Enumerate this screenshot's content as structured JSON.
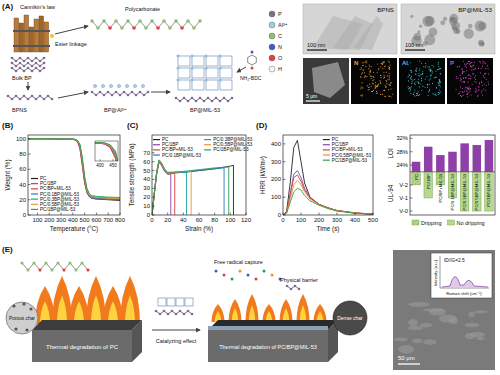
{
  "panel_a": {
    "letter": "(A)",
    "texts": {
      "cannikin": "Cannikin's law",
      "polycarbonate": "Polycarbonate",
      "ester": "Ester linkage",
      "bulk_bp": "Bulk BP",
      "bpns": "BPNS",
      "bp_al": "BP@Al³⁺",
      "bp_mil": "BP@MIL-53",
      "bdc": "NH₂-BDC"
    },
    "atoms": [
      {
        "label": "P",
        "color": "#7d6b91"
      },
      {
        "label": "Al³⁺",
        "color": "#9fcde6"
      },
      {
        "label": "C",
        "color": "#8fbf6a"
      },
      {
        "label": "N",
        "color": "#3a5fcd"
      },
      {
        "label": "O",
        "color": "#e04040"
      },
      {
        "label": "H",
        "color": "#f4f4f4"
      }
    ],
    "tem": [
      {
        "title": "BPNS",
        "scale": "100 nm"
      },
      {
        "title": "BP@MIL-53",
        "scale": "100 nm"
      }
    ],
    "mapping": {
      "scale": "5 μm",
      "elements": [
        {
          "label": "N",
          "color": "#e8a03a"
        },
        {
          "label": "Al",
          "color": "#3ec9d6"
        },
        {
          "label": "P",
          "color": "#d84fc8"
        }
      ]
    }
  },
  "chart_data": [
    {
      "panel": "(B)",
      "type": "line",
      "xlabel": "Temperature (°C)",
      "ylabel": "Weight (%)",
      "x": [
        20,
        100,
        200,
        300,
        400,
        420,
        440,
        460,
        480,
        500,
        520,
        540,
        560,
        600,
        700,
        800
      ],
      "xlim": [
        20,
        800
      ],
      "xticks": [
        100,
        200,
        300,
        400,
        500,
        600,
        700,
        800
      ],
      "ylim": [
        0,
        105
      ],
      "yticks": [
        0,
        20,
        40,
        60,
        80,
        100
      ],
      "legend": "lower left",
      "series": [
        {
          "name": "PC",
          "color": "#222222",
          "values": [
            100,
            100,
            100,
            99.8,
            99.5,
            99,
            97,
            90,
            70,
            45,
            30,
            24,
            22,
            21,
            20,
            19
          ]
        },
        {
          "name": "PC/1BP",
          "color": "#8e44ad",
          "values": [
            100,
            100,
            100,
            99.7,
            99.3,
            98.5,
            96,
            88,
            66,
            42,
            29,
            24,
            22,
            21,
            20.5,
            20
          ]
        },
        {
          "name": "PC/BP+MIL-53",
          "color": "#d94040",
          "values": [
            100,
            100,
            100,
            99.7,
            99.2,
            98.4,
            95.5,
            87,
            65,
            42,
            30,
            25,
            23,
            22,
            21,
            20.5
          ]
        },
        {
          "name": "PC/0.1BP@MIL-53",
          "color": "#2a7ab9",
          "values": [
            100,
            100,
            100,
            99.8,
            99.5,
            99,
            97,
            91,
            72,
            47,
            31,
            25,
            23,
            22,
            21,
            20.5
          ]
        },
        {
          "name": "PC/0.3BP@MIL-53",
          "color": "#17a2a2",
          "values": [
            100,
            100,
            100,
            99.8,
            99.6,
            99.2,
            97.5,
            92,
            74,
            49,
            33,
            27,
            24.5,
            23.5,
            22.5,
            22
          ]
        },
        {
          "name": "PC/0.5BP@MIL-53",
          "color": "#e8962e",
          "values": [
            100,
            100,
            100,
            99.8,
            99.5,
            99.1,
            97.2,
            91,
            73,
            48,
            32,
            26,
            24,
            23,
            22,
            21.5
          ]
        },
        {
          "name": "PC/1BP@MIL-53",
          "color": "#2e9e4f",
          "values": [
            100,
            100,
            100,
            99.8,
            99.6,
            99.3,
            98,
            93,
            76,
            51,
            35,
            28,
            25.5,
            24.5,
            23.5,
            23
          ]
        }
      ],
      "inset": {
        "xlim": [
          380,
          470
        ],
        "ylim": [
          85,
          101
        ],
        "xticks": [
          400,
          450
        ]
      }
    },
    {
      "panel": "(C)",
      "type": "line",
      "xlabel": "Strain (%)",
      "ylabel": "Tensile strength (MPa)",
      "xlim": [
        0,
        120
      ],
      "xticks": [
        0,
        20,
        40,
        60,
        80,
        100,
        120
      ],
      "ylim": [
        0,
        90
      ],
      "yticks": [
        0,
        10,
        20,
        30,
        40,
        50,
        60,
        70
      ],
      "legend": "upper right",
      "series": [
        {
          "name": "PC",
          "color": "#222222",
          "x": [
            0,
            3,
            6,
            9,
            12,
            16,
            20,
            40,
            60,
            80,
            100,
            104,
            104
          ],
          "values": [
            0,
            25,
            48,
            61,
            58,
            51,
            47,
            48,
            50,
            52,
            55,
            56,
            0
          ]
        },
        {
          "name": "PC/1BP",
          "color": "#8e44ad",
          "x": [
            0,
            3,
            6,
            9,
            12,
            16,
            20,
            24,
            24
          ],
          "values": [
            0,
            24,
            46,
            59,
            56,
            49,
            46,
            46,
            0
          ]
        },
        {
          "name": "PC/BP+MIL-53",
          "color": "#d94040",
          "x": [
            0,
            3,
            6,
            9,
            12,
            16,
            20,
            29,
            29
          ],
          "values": [
            0,
            24,
            47,
            60,
            57,
            50,
            46,
            47,
            0
          ]
        },
        {
          "name": "PC/0.1BP@MIL-53",
          "color": "#2a7ab9",
          "x": [
            0,
            3,
            6,
            9,
            12,
            16,
            20,
            40,
            60,
            80,
            92,
            92
          ],
          "values": [
            0,
            25,
            48,
            61,
            58,
            51,
            47,
            48,
            50,
            52,
            53,
            0
          ]
        },
        {
          "name": "PC/0.3BP@MIL-53",
          "color": "#17a2a2",
          "x": [
            0,
            3,
            6,
            9,
            12,
            16,
            20,
            30,
            44,
            44
          ],
          "values": [
            0,
            25,
            48,
            61,
            58,
            51,
            47,
            48,
            48,
            0
          ]
        },
        {
          "name": "PC/0.5BP@MIL-53",
          "color": "#e8962e",
          "x": [
            0,
            3,
            6,
            9,
            12,
            16,
            20,
            30,
            40,
            50,
            50
          ],
          "values": [
            0,
            25,
            48,
            61,
            58,
            51,
            47,
            48,
            49,
            49,
            0
          ]
        },
        {
          "name": "PC/1BP@MIL-53",
          "color": "#2e9e4f",
          "x": [
            0,
            3,
            6,
            9,
            12,
            16,
            20,
            40,
            60,
            80,
            98,
            98
          ],
          "values": [
            0,
            25,
            48,
            62,
            59,
            52,
            48,
            49,
            51,
            53,
            54,
            0
          ]
        }
      ]
    },
    {
      "panel": "(D)",
      "type": "line",
      "xlabel": "Time (s)",
      "ylabel": "HRR (kW/m²)",
      "x": [
        0,
        20,
        40,
        60,
        80,
        100,
        120,
        150,
        200,
        250,
        300,
        400,
        500
      ],
      "xlim": [
        0,
        500
      ],
      "xticks": [
        0,
        100,
        200,
        300,
        400,
        500
      ],
      "ylim": [
        0,
        450
      ],
      "yticks": [
        0,
        100,
        200,
        300,
        400
      ],
      "legend": "upper right",
      "series": [
        {
          "name": "PC",
          "color": "#222222",
          "values": [
            0,
            20,
            180,
            380,
            420,
            300,
            180,
            100,
            60,
            40,
            25,
            10,
            5
          ]
        },
        {
          "name": "PC/1BP",
          "color": "#8e44ad",
          "values": [
            0,
            15,
            120,
            230,
            250,
            210,
            150,
            100,
            60,
            40,
            25,
            12,
            5
          ]
        },
        {
          "name": "PC/BP+MIL-53",
          "color": "#d94040",
          "values": [
            0,
            15,
            110,
            210,
            225,
            190,
            140,
            95,
            60,
            40,
            25,
            12,
            5
          ]
        },
        {
          "name": "PC/0.5BP@MIL-53",
          "color": "#e8962e",
          "values": [
            0,
            12,
            90,
            170,
            195,
            170,
            130,
            90,
            58,
            38,
            24,
            12,
            5
          ]
        },
        {
          "name": "PC/1BP@MIL-53",
          "color": "#2e9e4f",
          "values": [
            0,
            10,
            70,
            130,
            150,
            140,
            110,
            80,
            55,
            36,
            22,
            10,
            5
          ]
        }
      ]
    },
    {
      "type": "bar",
      "ylabel": "LOI",
      "y2label": "UL-94",
      "categories": [
        "PC",
        "PC/1BP",
        "PC/BP+MIL-53",
        "PC/0.1BP@MIL-53",
        "PC/0.3BP@MIL-53",
        "PC/0.5BP@MIL-53",
        "PC/1BP@MIL-53"
      ],
      "ylim": [
        22,
        33
      ],
      "yticks": [
        {
          "value": 24,
          "label": "24%"
        },
        {
          "value": 28,
          "label": "28%"
        },
        {
          "value": 32,
          "label": "32%"
        }
      ],
      "y2lim": [
        0,
        3.3
      ],
      "y2ticks": [
        {
          "value": 1,
          "label": "V-2"
        },
        {
          "value": 2,
          "label": "V-1"
        },
        {
          "value": 3,
          "label": "V-0"
        }
      ],
      "series": [
        {
          "color": "#8e3fa8",
          "values": [
            25.0,
            29.5,
            27.0,
            28.0,
            30.5,
            30.0,
            31.5
          ]
        },
        {
          "color": "#b7d98f",
          "values": [
            1,
            2,
            1,
            2,
            3,
            3,
            3
          ],
          "axis": "y2"
        }
      ],
      "dripping": [
        true,
        false,
        true,
        false,
        false,
        false,
        false
      ],
      "drip_legend": [
        "Dripping",
        "No dripping"
      ],
      "legend": "bottom"
    }
  ],
  "panel_e": {
    "letter": "(E)",
    "texts": {
      "porous": "Porous char",
      "left_caption": "Thermal degradation of PC",
      "catalyzing": "Catalyzing effect",
      "radical": "Free radical capture",
      "barrier": "Physical barrier",
      "dense": "Dense char",
      "right_caption": "Thermal degradation of PC/BP@MIL-53"
    },
    "raman": {
      "xlabel": "Raman shift (cm⁻¹)",
      "ylabel": "Intensity (a.u.)",
      "ratio": "ID/IG=2.5"
    },
    "scale": "50 μm"
  }
}
